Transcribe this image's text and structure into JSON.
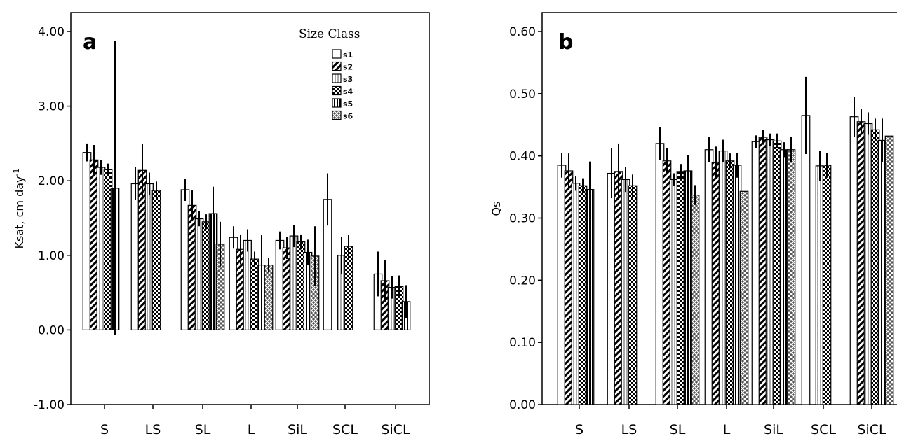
{
  "chart_data": [
    {
      "type": "bar",
      "panel_label": "a",
      "ylabel": "Ksat, cm day",
      "ylabel_superscript": "-1",
      "ylim": [
        -1.0,
        4.0
      ],
      "yticks": [
        "-1.00",
        "0.00",
        "1.00",
        "2.00",
        "3.00",
        "4.00"
      ],
      "categories": [
        "S",
        "LS",
        "SL",
        "L",
        "SiL",
        "SCL",
        "SiCL"
      ],
      "legend": {
        "title": "Size Class",
        "position": "top-right"
      },
      "series": [
        {
          "name": "s1",
          "values": [
            2.38,
            1.96,
            1.88,
            1.24,
            1.2,
            1.75,
            0.75
          ],
          "err": [
            0.12,
            0.22,
            0.15,
            0.15,
            0.12,
            0.35,
            0.3
          ]
        },
        {
          "name": "s2",
          "values": [
            2.28,
            2.14,
            1.67,
            1.08,
            1.1,
            null,
            0.66
          ],
          "err": [
            0.2,
            0.35,
            0.2,
            0.2,
            0.15,
            null,
            0.28
          ]
        },
        {
          "name": "s3",
          "values": [
            2.18,
            1.96,
            1.49,
            1.2,
            1.26,
            1.0,
            0.57
          ],
          "err": [
            0.1,
            0.15,
            0.1,
            0.15,
            0.15,
            0.25,
            0.15
          ]
        },
        {
          "name": "s4",
          "values": [
            2.15,
            1.87,
            1.45,
            0.95,
            1.18,
            1.12,
            0.58
          ],
          "err": [
            0.08,
            0.12,
            0.1,
            0.1,
            0.1,
            0.15,
            0.15
          ]
        },
        {
          "name": "s5",
          "values": [
            1.9,
            null,
            1.56,
            0.87,
            1.04,
            null,
            0.38
          ],
          "err": [
            1.97,
            null,
            0.36,
            0.4,
            0.17,
            null,
            0.22
          ]
        },
        {
          "name": "s6",
          "values": [
            null,
            null,
            1.15,
            0.87,
            0.99,
            null,
            null
          ],
          "err": [
            null,
            null,
            0.3,
            0.1,
            0.4,
            null,
            null
          ]
        }
      ]
    },
    {
      "type": "bar",
      "panel_label": "b",
      "ylabel": "Qs",
      "ylim": [
        0.0,
        0.6
      ],
      "yticks": [
        "0.00",
        "0.10",
        "0.20",
        "0.30",
        "0.40",
        "0.50",
        "0.60"
      ],
      "categories": [
        "S",
        "LS",
        "SL",
        "L",
        "SiL",
        "SCL",
        "SiCL"
      ],
      "series": [
        {
          "name": "s1",
          "values": [
            0.385,
            0.372,
            0.42,
            0.41,
            0.423,
            0.465,
            0.463
          ],
          "err": [
            0.02,
            0.04,
            0.026,
            0.02,
            0.01,
            0.062,
            0.032
          ]
        },
        {
          "name": "s2",
          "values": [
            0.376,
            0.375,
            0.392,
            0.39,
            0.43,
            null,
            0.455
          ],
          "err": [
            0.028,
            0.045,
            0.02,
            0.025,
            0.012,
            null,
            0.02
          ]
        },
        {
          "name": "s3",
          "values": [
            0.356,
            0.362,
            0.362,
            0.408,
            0.426,
            0.384,
            0.452
          ],
          "err": [
            0.012,
            0.02,
            0.01,
            0.018,
            0.01,
            0.024,
            0.018
          ]
        },
        {
          "name": "s4",
          "values": [
            0.352,
            0.352,
            0.375,
            0.392,
            0.424,
            0.385,
            0.442
          ],
          "err": [
            0.012,
            0.018,
            0.012,
            0.012,
            0.012,
            0.02,
            0.018
          ]
        },
        {
          "name": "s5",
          "values": [
            0.346,
            null,
            0.376,
            0.385,
            0.41,
            null,
            0.425
          ],
          "err": [
            0.045,
            null,
            0.025,
            0.02,
            0.012,
            null,
            0.035
          ]
        },
        {
          "name": "s6",
          "values": [
            null,
            null,
            0.337,
            0.343,
            0.41,
            null,
            0.432
          ],
          "err": [
            null,
            null,
            0.016,
            null,
            0.02,
            null,
            null
          ]
        }
      ]
    }
  ]
}
